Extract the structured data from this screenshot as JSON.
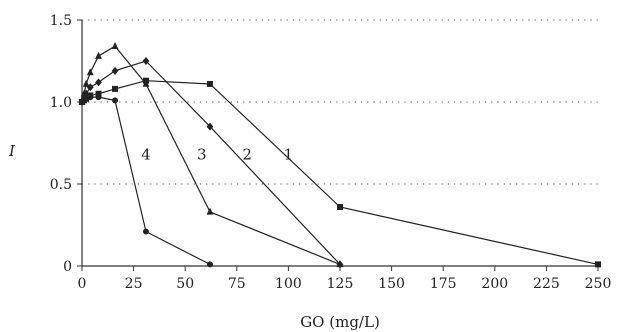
{
  "chart_data": {
    "type": "line",
    "title": "",
    "xlabel": "GO (mg/L)",
    "ylabel": "I",
    "xlim": [
      0,
      250
    ],
    "ylim": [
      0,
      1.5
    ],
    "x_ticks": [
      "0",
      "25",
      "50",
      "75",
      "100",
      "125",
      "150",
      "175",
      "200",
      "225",
      "250"
    ],
    "y_ticks": [
      "0",
      "0.5",
      "1.0",
      "1.5"
    ],
    "grid": "horizontal dotted",
    "legend": "inline curve labels",
    "series": [
      {
        "name": "1",
        "marker": "square",
        "x": [
          0,
          1,
          2,
          4,
          8,
          16,
          31,
          62,
          125,
          250
        ],
        "y": [
          1.0,
          1.01,
          1.02,
          1.04,
          1.05,
          1.08,
          1.13,
          1.11,
          0.36,
          0.01
        ]
      },
      {
        "name": "2",
        "marker": "diamond",
        "x": [
          0,
          1,
          2,
          4,
          8,
          16,
          31,
          62,
          125
        ],
        "y": [
          1.0,
          1.02,
          1.05,
          1.09,
          1.12,
          1.19,
          1.25,
          0.85,
          0.01
        ]
      },
      {
        "name": "3",
        "marker": "triangle",
        "x": [
          0,
          1,
          2,
          4,
          8,
          16,
          31,
          62,
          125
        ],
        "y": [
          1.0,
          1.05,
          1.11,
          1.18,
          1.28,
          1.34,
          1.11,
          0.33,
          0.01
        ]
      },
      {
        "name": "4",
        "marker": "circle",
        "x": [
          0,
          1,
          2,
          4,
          8,
          16,
          31,
          62
        ],
        "y": [
          1.0,
          1.01,
          1.02,
          1.03,
          1.03,
          1.01,
          0.21,
          0.01
        ]
      }
    ],
    "curve_labels": [
      {
        "text": "1",
        "x": 100,
        "y": 0.68
      },
      {
        "text": "2",
        "x": 80,
        "y": 0.68
      },
      {
        "text": "3",
        "x": 58,
        "y": 0.68
      },
      {
        "text": "4",
        "x": 31,
        "y": 0.68
      }
    ]
  }
}
